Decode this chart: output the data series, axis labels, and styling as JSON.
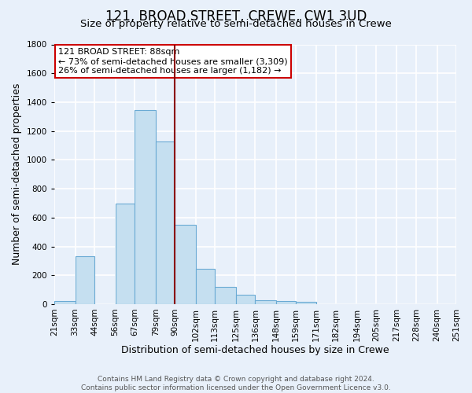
{
  "title": "121, BROAD STREET, CREWE, CW1 3UD",
  "subtitle": "Size of property relative to semi-detached houses in Crewe",
  "xlabel": "Distribution of semi-detached houses by size in Crewe",
  "ylabel": "Number of semi-detached properties",
  "bin_labels": [
    "21sqm",
    "33sqm",
    "44sqm",
    "56sqm",
    "67sqm",
    "79sqm",
    "90sqm",
    "102sqm",
    "113sqm",
    "125sqm",
    "136sqm",
    "148sqm",
    "159sqm",
    "171sqm",
    "182sqm",
    "194sqm",
    "205sqm",
    "217sqm",
    "228sqm",
    "240sqm",
    "251sqm"
  ],
  "bin_edges": [
    21,
    33,
    44,
    56,
    67,
    79,
    90,
    102,
    113,
    125,
    136,
    148,
    159,
    171,
    182,
    194,
    205,
    217,
    228,
    240,
    251
  ],
  "bar_heights": [
    20,
    330,
    0,
    695,
    1345,
    1130,
    550,
    245,
    120,
    65,
    25,
    20,
    15,
    0,
    0,
    0,
    0,
    0,
    0,
    0
  ],
  "bar_color": "#c5dff0",
  "bar_edge_color": "#6aaad4",
  "property_line_x": 90,
  "property_line_color": "#8b0000",
  "annotation_title": "121 BROAD STREET: 88sqm",
  "annotation_line1": "← 73% of semi-detached houses are smaller (3,309)",
  "annotation_line2": "26% of semi-detached houses are larger (1,182) →",
  "annotation_box_color": "white",
  "annotation_box_edge": "#cc0000",
  "ylim": [
    0,
    1800
  ],
  "yticks": [
    0,
    200,
    400,
    600,
    800,
    1000,
    1200,
    1400,
    1600,
    1800
  ],
  "footer1": "Contains HM Land Registry data © Crown copyright and database right 2024.",
  "footer2": "Contains public sector information licensed under the Open Government Licence v3.0.",
  "background_color": "#e8f0fa",
  "grid_color": "#ffffff",
  "title_fontsize": 12,
  "subtitle_fontsize": 9.5,
  "axis_label_fontsize": 9,
  "tick_fontsize": 7.5,
  "footer_fontsize": 6.5
}
